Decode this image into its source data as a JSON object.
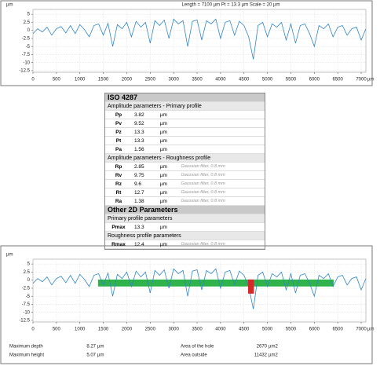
{
  "chart_data": [
    {
      "type": "line",
      "title": "Length = 7100 µm  Pt = 13.3 µm  Scale = 20 µm",
      "y_label": "µm",
      "x_label": "µm",
      "x": [
        0,
        100,
        200,
        300,
        400,
        500,
        600,
        700,
        800,
        900,
        1000,
        1100,
        1200,
        1300,
        1400,
        1500,
        1600,
        1700,
        1800,
        1900,
        2000,
        2100,
        2200,
        2300,
        2400,
        2500,
        2600,
        2700,
        2800,
        2900,
        3000,
        3100,
        3200,
        3300,
        3400,
        3500,
        3600,
        3700,
        3800,
        3900,
        4000,
        4100,
        4200,
        4300,
        4400,
        4500,
        4600,
        4700,
        4800,
        4900,
        5000,
        5100,
        5200,
        5300,
        5400,
        5500,
        5600,
        5700,
        5800,
        5900,
        6000,
        6100,
        6200,
        6300,
        6400,
        6500,
        6600,
        6700,
        6800,
        6900,
        7000,
        7100
      ],
      "series": [
        {
          "color": "#2f86c6",
          "values": [
            -1,
            0.5,
            -0.5,
            1,
            -1.5,
            0.5,
            1.2,
            -0.8,
            1.5,
            -1,
            1.8,
            0.2,
            -2,
            1.5,
            2,
            -1.5,
            2.2,
            -5,
            1.8,
            0.5,
            2.5,
            -2,
            2.8,
            1,
            2.5,
            -4,
            3,
            1.5,
            3.2,
            -2.5,
            3.5,
            2,
            3,
            -5,
            2.8,
            3.2,
            -3,
            3,
            2,
            3.5,
            -2.5,
            2.5,
            3,
            -1.5,
            2.8,
            1.5,
            -2,
            -9,
            1.5,
            2.5,
            -2,
            2,
            1,
            2.5,
            -3,
            2,
            -4,
            1.5,
            2,
            -1,
            -5,
            1.5,
            0.5,
            2,
            -2,
            1,
            1.5,
            -1.5,
            0.5,
            1,
            -3,
            0.5
          ]
        }
      ],
      "xlim": [
        0,
        7100
      ],
      "ylim": [
        -13,
        6.5
      ],
      "xticks": [
        0,
        500,
        1000,
        1500,
        2000,
        2500,
        3000,
        3500,
        4000,
        4500,
        5000,
        5500,
        6000,
        6500,
        7000
      ],
      "yticks": [
        5,
        2.5,
        0,
        -2.5,
        -5,
        -7.5,
        -10,
        -12.5
      ],
      "grid": true
    },
    {
      "type": "line",
      "y_label": "µm",
      "x_label": "µm",
      "x": [
        0,
        100,
        200,
        300,
        400,
        500,
        600,
        700,
        800,
        900,
        1000,
        1100,
        1200,
        1300,
        1400,
        1500,
        1600,
        1700,
        1800,
        1900,
        2000,
        2100,
        2200,
        2300,
        2400,
        2500,
        2600,
        2700,
        2800,
        2900,
        3000,
        3100,
        3200,
        3300,
        3400,
        3500,
        3600,
        3700,
        3800,
        3900,
        4000,
        4100,
        4200,
        4300,
        4400,
        4500,
        4600,
        4700,
        4800,
        4900,
        5000,
        5100,
        5200,
        5300,
        5400,
        5500,
        5600,
        5700,
        5800,
        5900,
        6000,
        6100,
        6200,
        6300,
        6400,
        6500,
        6600,
        6700,
        6800,
        6900,
        7000,
        7100
      ],
      "series": [
        {
          "type": "area",
          "color": "#2fb34a",
          "values": [
            null,
            null,
            null,
            null,
            null,
            null,
            null,
            null,
            null,
            null,
            null,
            null,
            null,
            null,
            -1.8,
            -1.8,
            -1.8,
            -1.8,
            -1.8,
            -1.8,
            -1.8,
            -1.8,
            -1.8,
            -1.8,
            -1.8,
            -1.8,
            -1.8,
            -1.8,
            -1.8,
            -1.8,
            -1.8,
            -1.8,
            -1.8,
            -1.8,
            -1.8,
            -1.8,
            -1.8,
            -1.8,
            -1.8,
            -1.8,
            -1.8,
            -1.8,
            -1.8,
            -1.8,
            -1.8,
            -1.8,
            -1.8,
            -1.8,
            -1.8,
            -1.8,
            -1.8,
            -1.8,
            -1.8,
            -1.8,
            -1.8,
            -1.8,
            -1.8,
            -1.8,
            -1.8,
            -1.8,
            -1.8,
            -1.8,
            -1.8,
            -1.8,
            -1.8,
            null,
            null,
            null,
            null,
            null,
            null,
            null
          ]
        },
        {
          "color": "#2f86c6",
          "values": [
            -1,
            0.5,
            -0.5,
            1,
            -1.5,
            0.5,
            1.2,
            -0.8,
            1.5,
            -1,
            1.8,
            0.2,
            -2,
            1.5,
            2,
            -1.5,
            2.2,
            -5,
            1.8,
            0.5,
            2.5,
            -2,
            2.8,
            1,
            2.5,
            -4,
            3,
            1.5,
            3.2,
            -2.5,
            3.5,
            2,
            3,
            -5,
            2.8,
            3.2,
            -3,
            3,
            2,
            3.5,
            -2.5,
            2.5,
            3,
            -1.5,
            2.8,
            1.5,
            -2,
            -9,
            1.5,
            2.5,
            -2,
            2,
            1,
            2.5,
            -3,
            2,
            -4,
            1.5,
            2,
            -1,
            -5,
            1.5,
            0.5,
            2,
            -2,
            1,
            1.5,
            -1.5,
            0.5,
            1,
            -3,
            0.5
          ]
        },
        {
          "type": "area",
          "color": "#d42a2a",
          "values": [
            null,
            null,
            null,
            null,
            null,
            null,
            null,
            null,
            null,
            null,
            null,
            null,
            null,
            null,
            null,
            null,
            null,
            null,
            null,
            null,
            null,
            null,
            null,
            null,
            null,
            null,
            null,
            null,
            null,
            null,
            null,
            null,
            null,
            null,
            null,
            null,
            null,
            null,
            null,
            null,
            null,
            null,
            null,
            null,
            null,
            null,
            -4,
            -4,
            null,
            null,
            null,
            null,
            null,
            null,
            null,
            null,
            null,
            null,
            null,
            null,
            null,
            null,
            null,
            null,
            null,
            null,
            null,
            null,
            null,
            null,
            null,
            null
          ]
        }
      ],
      "xlim": [
        0,
        7100
      ],
      "ylim": [
        -13,
        6.5
      ],
      "xticks": [
        0,
        500,
        1000,
        1500,
        2000,
        2500,
        3000,
        3500,
        4000,
        4500,
        5000,
        5500,
        6000,
        6500,
        7000
      ],
      "yticks": [
        5,
        2.5,
        0,
        -2.5,
        -5,
        -7.5,
        -10,
        -12.5
      ],
      "grid": true
    }
  ],
  "table": {
    "title": "ISO 4287",
    "sections": [
      {
        "heading": "Amplitude parameters - Primary profile",
        "rows": [
          {
            "name": "Pp",
            "value": 3.82,
            "unit": "µm"
          },
          {
            "name": "Pv",
            "value": 9.52,
            "unit": "µm"
          },
          {
            "name": "Pz",
            "value": 13.3,
            "unit": "µm"
          },
          {
            "name": "Pt",
            "value": 13.3,
            "unit": "µm"
          },
          {
            "name": "Pa",
            "value": 1.56,
            "unit": "µm"
          }
        ]
      },
      {
        "heading": "Amplitude parameters - Roughness profile",
        "rows": [
          {
            "name": "Rp",
            "value": 2.85,
            "unit": "µm",
            "note": "Gaussian filter, 0.8 mm"
          },
          {
            "name": "Rv",
            "value": 9.75,
            "unit": "µm",
            "note": "Gaussian filter, 0.8 mm"
          },
          {
            "name": "Rz",
            "value": 9.6,
            "unit": "µm",
            "note": "Gaussian filter, 0.8 mm"
          },
          {
            "name": "Rt",
            "value": 12.7,
            "unit": "µm",
            "note": "Gaussian filter, 0.8 mm"
          },
          {
            "name": "Ra",
            "value": 1.38,
            "unit": "µm",
            "note": "Gaussian filter, 0.8 mm"
          }
        ]
      }
    ],
    "other_title": "Other 2D Parameters",
    "other_sections": [
      {
        "heading": "Primary profile parameters",
        "rows": [
          {
            "name": "Pmax",
            "value": 13.3,
            "unit": "µm"
          }
        ]
      },
      {
        "heading": "Roughness profile parameters",
        "rows": [
          {
            "name": "Rmax",
            "value": 12.4,
            "unit": "µm",
            "note": "Gaussian filter, 0.8 mm"
          }
        ]
      }
    ]
  },
  "footer": [
    [
      {
        "label": "Maximum depth",
        "value": 8.27,
        "unit": "µm"
      },
      {
        "label": "Area of the hole",
        "value": 2670,
        "unit": "µm2"
      }
    ],
    [
      {
        "label": "Maximum height",
        "value": 5.07,
        "unit": "µm"
      },
      {
        "label": "Area outside",
        "value": 11432,
        "unit": "µm2"
      }
    ]
  ]
}
